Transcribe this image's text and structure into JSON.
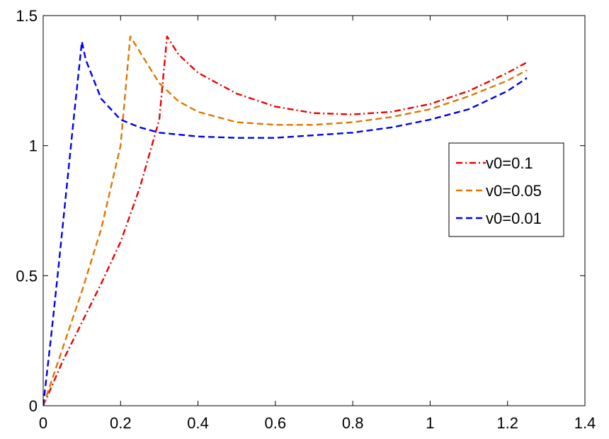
{
  "chart_data": {
    "type": "line",
    "title": "",
    "xlabel": "",
    "ylabel": "",
    "xlim": [
      0,
      1.4
    ],
    "ylim": [
      0,
      1.5
    ],
    "x_ticks": [
      "0",
      "0.2",
      "0.4",
      "0.6",
      "0.8",
      "1",
      "1.2",
      "1.4"
    ],
    "y_ticks": [
      "0",
      "0.5",
      "1",
      "1.5"
    ],
    "grid": false,
    "legend_position": "right",
    "series": [
      {
        "name": "v0=0.1",
        "color": "#ee0000",
        "dash": "dash-dot",
        "x": [
          0,
          0.05,
          0.1,
          0.15,
          0.2,
          0.25,
          0.3,
          0.32,
          0.35,
          0.4,
          0.5,
          0.6,
          0.7,
          0.8,
          0.9,
          1.0,
          1.1,
          1.2,
          1.25
        ],
        "y": [
          0,
          0.17,
          0.32,
          0.47,
          0.63,
          0.84,
          1.1,
          1.42,
          1.35,
          1.28,
          1.2,
          1.15,
          1.125,
          1.12,
          1.13,
          1.16,
          1.21,
          1.28,
          1.32
        ]
      },
      {
        "name": "v0=0.05",
        "color": "#dd7700",
        "dash": "dash",
        "x": [
          0,
          0.05,
          0.1,
          0.15,
          0.2,
          0.225,
          0.25,
          0.3,
          0.35,
          0.4,
          0.5,
          0.6,
          0.7,
          0.8,
          0.9,
          1.0,
          1.1,
          1.2,
          1.25
        ],
        "y": [
          0,
          0.22,
          0.44,
          0.68,
          1.0,
          1.42,
          1.36,
          1.24,
          1.17,
          1.13,
          1.09,
          1.08,
          1.08,
          1.09,
          1.11,
          1.14,
          1.19,
          1.25,
          1.29
        ]
      },
      {
        "name": "v0=0.01",
        "color": "#0000ee",
        "dash": "dash",
        "x": [
          0,
          0.02,
          0.04,
          0.06,
          0.08,
          0.1,
          0.11,
          0.15,
          0.2,
          0.25,
          0.3,
          0.4,
          0.5,
          0.6,
          0.7,
          0.8,
          0.9,
          1.0,
          1.1,
          1.2,
          1.25
        ],
        "y": [
          0,
          0.26,
          0.54,
          0.83,
          1.12,
          1.4,
          1.33,
          1.18,
          1.1,
          1.07,
          1.05,
          1.035,
          1.03,
          1.03,
          1.04,
          1.05,
          1.07,
          1.1,
          1.14,
          1.21,
          1.26
        ]
      }
    ]
  }
}
